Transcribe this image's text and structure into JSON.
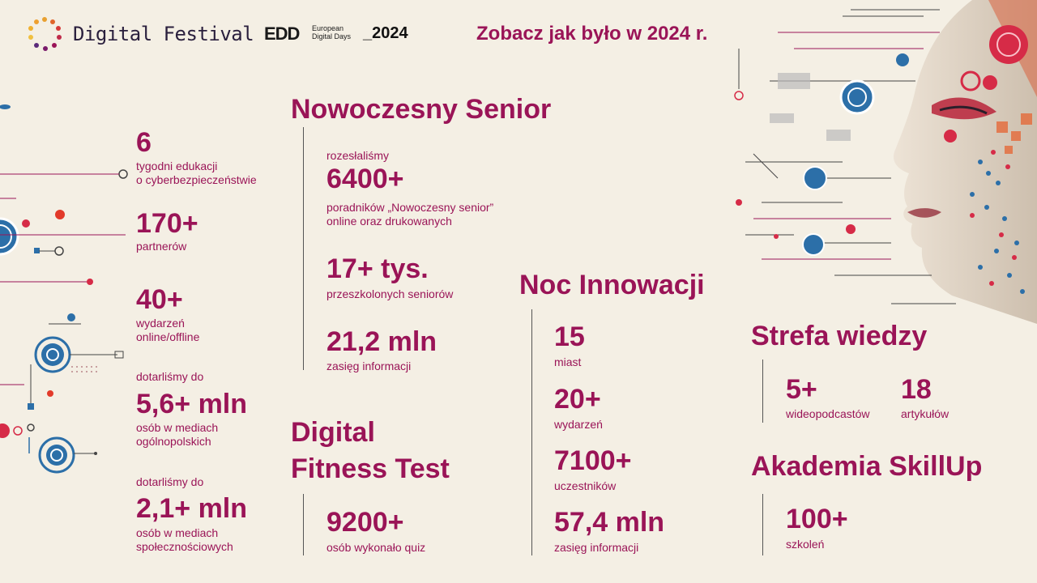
{
  "header": {
    "logo_text": "Digital Festival",
    "edd_mark": "EDD",
    "edd_line1": "European",
    "edd_line2": "Digital Days",
    "year": "_2024",
    "title": "Zobacz jak było w 2024 r."
  },
  "left": {
    "s1": {
      "value": "6",
      "line1": "tygodni edukacji",
      "line2": "o cyberbezpieczeństwie"
    },
    "s2": {
      "value": "170+",
      "line1": "partnerów"
    },
    "s3": {
      "value": "40+",
      "line1": "wydarzeń",
      "line2": "online/offline"
    },
    "s4": {
      "pre": "dotarliśmy do",
      "value": "5,6+ mln",
      "line1": "osób w mediach",
      "line2": "ogólnopolskich"
    },
    "s5": {
      "pre": "dotarliśmy do",
      "value": "2,1+ mln",
      "line1": "osób w mediach",
      "line2": "społecznościowych"
    }
  },
  "senior": {
    "heading": "Nowoczesny Senior",
    "s1": {
      "pre": "rozesłaliśmy",
      "value": "6400+",
      "line1": "poradników „Nowoczesny senior”",
      "line2": "online oraz drukowanych"
    },
    "s2": {
      "value": "17+ tys.",
      "line1": "przeszkolonych seniorów"
    },
    "s3": {
      "value": "21,2 mln",
      "line1": "zasięg informacji"
    }
  },
  "fitness": {
    "heading1": "Digital",
    "heading2": "Fitness Test",
    "s1": {
      "value": "9200+",
      "line1": "osób wykonało quiz"
    }
  },
  "noc": {
    "heading": "Noc Innowacji",
    "s1": {
      "value": "15",
      "line1": "miast"
    },
    "s2": {
      "value": "20+",
      "line1": "wydarzeń"
    },
    "s3": {
      "value": "7100+",
      "line1": "uczestników"
    },
    "s4": {
      "value": "57,4 mln",
      "line1": "zasięg informacji"
    }
  },
  "strefa": {
    "heading": "Strefa wiedzy",
    "s1": {
      "value": "5+",
      "line1": "wideopodcastów"
    },
    "s2": {
      "value": "18",
      "line1": "artykułów"
    }
  },
  "akademia": {
    "heading": "Akademia SkillUp",
    "s1": {
      "value": "100+",
      "line1": "szkoleń"
    }
  }
}
